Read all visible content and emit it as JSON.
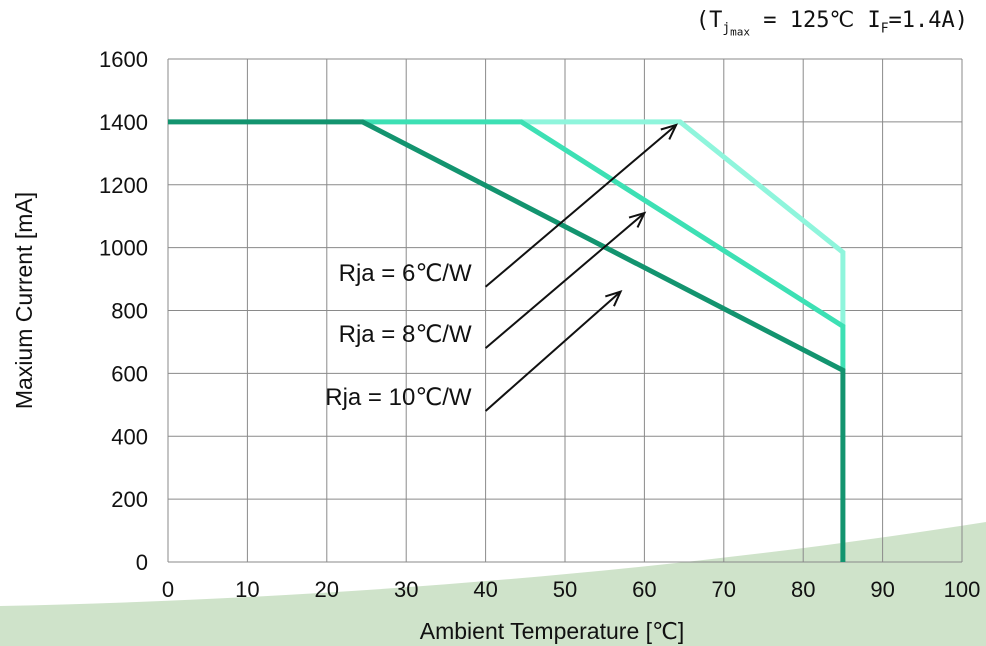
{
  "colors": {
    "rja10": "#13946f",
    "rja8": "#3de0b4",
    "rja6": "#8ff5dc",
    "grid": "#8a8a8a",
    "swoosh": "#bfd9b8",
    "text": "#111111"
  },
  "condition": {
    "open": "(",
    "t": "T",
    "j": "j",
    "max": "max",
    "mid": " = 125℃ I",
    "f": "F",
    "close": "=1.4A)"
  },
  "chart_data": {
    "type": "line",
    "xlabel": "Ambient Temperature [℃]",
    "ylabel": "Maxium Current [mA]",
    "xlim": [
      0,
      100
    ],
    "ylim": [
      0,
      1600
    ],
    "xticks": [
      0,
      10,
      20,
      30,
      40,
      50,
      60,
      70,
      80,
      90,
      100
    ],
    "yticks": [
      0,
      200,
      400,
      600,
      800,
      1000,
      1200,
      1400,
      1600
    ],
    "grid": true,
    "series": [
      {
        "name": "Rja = 10℃/W",
        "color_key": "rja10",
        "x": [
          0,
          24.5,
          85,
          85
        ],
        "y": [
          1400,
          1400,
          610,
          0
        ]
      },
      {
        "name": "Rja = 8℃/W",
        "color_key": "rja8",
        "x": [
          24.5,
          44.5,
          85,
          85
        ],
        "y": [
          1400,
          1400,
          750,
          610
        ]
      },
      {
        "name": "Rja = 6℃/W",
        "color_key": "rja6",
        "x": [
          44.5,
          64.5,
          85,
          85
        ],
        "y": [
          1400,
          1400,
          985,
          750
        ]
      }
    ],
    "annotations": [
      {
        "text": "Rja = 6℃/W",
        "x": 40,
        "y": 920,
        "target": [
          64,
          1390
        ]
      },
      {
        "text": "Rja = 8℃/W",
        "x": 40,
        "y": 725,
        "target": [
          60,
          1110
        ]
      },
      {
        "text": "Rja = 10℃/W",
        "x": 40,
        "y": 525,
        "target": [
          57,
          860
        ]
      }
    ]
  }
}
